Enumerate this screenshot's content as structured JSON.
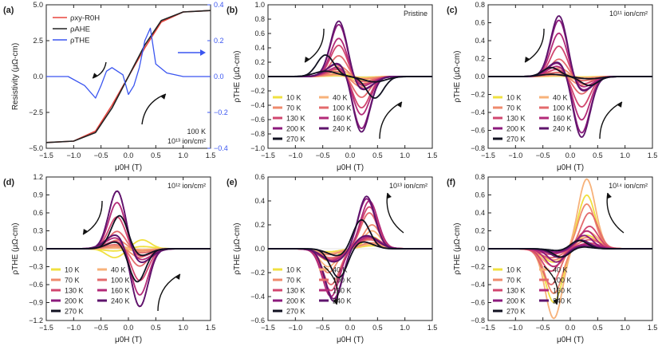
{
  "chart_data": [
    {
      "panel": "(a)",
      "type": "line",
      "xlim": [
        -1.5,
        1.5
      ],
      "ylim": [
        -5.0,
        5.0
      ],
      "ylim_right": [
        -0.4,
        0.4
      ],
      "yticks": [
        "5.0",
        "2.5",
        "0.0",
        "−2.5",
        "−5.0"
      ],
      "yticks_right": [
        "0.4",
        "0.2",
        "0.0",
        "−0.2",
        "−0.4"
      ],
      "ylabel": "Resistivity (μΩ-cm)",
      "legend": [
        "ρxy-R0H",
        "ρAHE",
        "ρTHE"
      ],
      "annotation": [
        "100 K",
        "10¹³ ion/cm²"
      ],
      "series": [
        {
          "name": "ρxy-R0H",
          "color": "#e8463f",
          "x": [
            -1.5,
            -1.0,
            -0.6,
            -0.3,
            0.0,
            0.3,
            0.6,
            1.0,
            1.5
          ],
          "y": [
            -4.6,
            -4.5,
            -3.8,
            -2.0,
            0.0,
            2.0,
            3.8,
            4.5,
            4.6
          ]
        },
        {
          "name": "ρAHE",
          "color": "#222222",
          "x": [
            -1.5,
            -1.0,
            -0.6,
            -0.3,
            0.0,
            0.3,
            0.6,
            1.0,
            1.5
          ],
          "y": [
            -4.6,
            -4.5,
            -3.9,
            -2.2,
            0.0,
            2.2,
            3.9,
            4.5,
            4.6
          ]
        },
        {
          "name": "ρTHE",
          "color": "#3a55f0",
          "axis": "right",
          "x": [
            -1.5,
            -1.1,
            -0.8,
            -0.6,
            -0.5,
            -0.4,
            -0.3,
            -0.1,
            0.0,
            0.1,
            0.2,
            0.3,
            0.4,
            0.5,
            0.7,
            1.0,
            1.5
          ],
          "y": [
            0.0,
            0.0,
            -0.05,
            -0.12,
            -0.05,
            0.03,
            0.05,
            0.01,
            -0.1,
            -0.05,
            0.05,
            0.2,
            0.27,
            0.07,
            0.02,
            0.0,
            0.0
          ]
        }
      ]
    },
    {
      "panel": "(b)",
      "type": "line",
      "xlim": [
        -1.5,
        1.5
      ],
      "ylim": [
        -1.0,
        1.0
      ],
      "yticks": [
        "1.0",
        "0.8",
        "0.6",
        "0.4",
        "0.2",
        "0.0",
        "−0.2",
        "−0.4",
        "−0.6",
        "−0.8",
        "−1.0"
      ],
      "ylabel": "ρTHE (μΩ-cm)",
      "annotation": "Pristine",
      "temps": [
        "10 K",
        "40 K",
        "70 K",
        "100 K",
        "130 K",
        "160 K",
        "200 K",
        "240 K",
        "270 K"
      ],
      "amplitudes": [
        0.05,
        0.1,
        0.15,
        0.3,
        0.45,
        0.55,
        0.75,
        0.8,
        0.3
      ],
      "peak_field": [
        0.2,
        0.2,
        0.2,
        0.2,
        0.2,
        0.2,
        0.2,
        0.2,
        0.45
      ],
      "sign": -1
    },
    {
      "panel": "(c)",
      "type": "line",
      "xlim": [
        -1.5,
        1.5
      ],
      "ylim": [
        -0.8,
        0.8
      ],
      "yticks": [
        "0.8",
        "0.6",
        "0.4",
        "0.2",
        "0.0",
        "−0.2",
        "−0.4",
        "−0.6",
        "−0.8"
      ],
      "ylabel": "ρTHE (μΩ-cm)",
      "annotation": "10¹¹ ion/cm²",
      "temps": [
        "10 K",
        "40 K",
        "70 K",
        "100 K",
        "130 K",
        "160 K",
        "200 K",
        "240 K",
        "270 K"
      ],
      "amplitudes": [
        0.02,
        0.05,
        0.1,
        0.2,
        0.35,
        0.5,
        0.65,
        0.7,
        0.1
      ],
      "peak_field": [
        0.2,
        0.2,
        0.2,
        0.2,
        0.2,
        0.2,
        0.2,
        0.2,
        0.35
      ],
      "sign": -1
    },
    {
      "panel": "(d)",
      "type": "line",
      "xlim": [
        -1.5,
        1.5
      ],
      "ylim": [
        -1.2,
        1.2
      ],
      "yticks": [
        "1.2",
        "0.9",
        "0.6",
        "0.3",
        "0.0",
        "−0.3",
        "−0.6",
        "−0.9",
        "−1.2"
      ],
      "ylabel": "ρTHE (μΩ-cm)",
      "annotation": "10¹² ion/cm²",
      "temps": [
        "10 K",
        "40 K",
        "70 K",
        "100 K",
        "130 K",
        "160 K",
        "200 K",
        "240 K",
        "270 K"
      ],
      "amplitudes": [
        -0.15,
        0.05,
        0.15,
        0.3,
        0.55,
        0.8,
        1.0,
        1.0,
        0.6
      ],
      "peak_field": [
        0.25,
        0.2,
        0.2,
        0.2,
        0.2,
        0.2,
        0.2,
        0.2,
        0.15
      ],
      "sign": -1
    },
    {
      "panel": "(e)",
      "type": "line",
      "xlim": [
        -1.5,
        1.5
      ],
      "ylim": [
        -0.6,
        0.6
      ],
      "yticks": [
        "0.6",
        "0.4",
        "0.2",
        "0.0",
        "−0.2",
        "−0.4",
        "−0.6"
      ],
      "ylabel": "ρTHE (μΩ-cm)",
      "annotation": "10¹³ ion/cm²",
      "temps": [
        "10 K",
        "40 K",
        "70 K",
        "100 K",
        "130 K",
        "160 K",
        "200 K",
        "240 K",
        "270 K"
      ],
      "amplitudes": [
        0.1,
        0.15,
        0.2,
        0.3,
        0.35,
        0.4,
        0.42,
        0.44,
        0.25
      ],
      "peak_field": [
        0.4,
        0.4,
        0.4,
        0.35,
        0.35,
        0.35,
        0.3,
        0.3,
        0.2
      ],
      "sign": 1
    },
    {
      "panel": "(f)",
      "type": "line",
      "xlim": [
        -1.5,
        1.5
      ],
      "ylim": [
        -0.8,
        0.8
      ],
      "yticks": [
        "0.8",
        "0.6",
        "0.4",
        "0.2",
        "0.0",
        "−0.2",
        "−0.4",
        "−0.6",
        "−0.8"
      ],
      "ylabel": "ρTHE (μΩ-cm)",
      "annotation": "10¹⁴ ion/cm²",
      "temps": [
        "10 K",
        "40 K",
        "70 K",
        "100 K",
        "130 K",
        "160 K",
        "200 K",
        "240 K",
        "270 K"
      ],
      "amplitudes": [
        0.6,
        0.78,
        0.5,
        0.4,
        0.25,
        0.2,
        0.15,
        0.1,
        0.1
      ],
      "peak_field": [
        0.3,
        0.3,
        0.3,
        0.35,
        0.35,
        0.3,
        0.25,
        0.2,
        0.15
      ],
      "sign": 1
    }
  ],
  "xticks": [
    "−1.5",
    "−1.0",
    "−0.5",
    "0.0",
    "0.5",
    "1.0",
    "1.5"
  ],
  "xlabel": "μ0H (T)",
  "temp_colors": {
    "10 K": "#f0e040",
    "40 K": "#f7b27a",
    "70 K": "#ef8a6c",
    "100 K": "#e36a6c",
    "130 K": "#d1466f",
    "160 K": "#b32a78",
    "200 K": "#8b1a7c",
    "240 K": "#5e146c",
    "270 K": "#111121"
  }
}
